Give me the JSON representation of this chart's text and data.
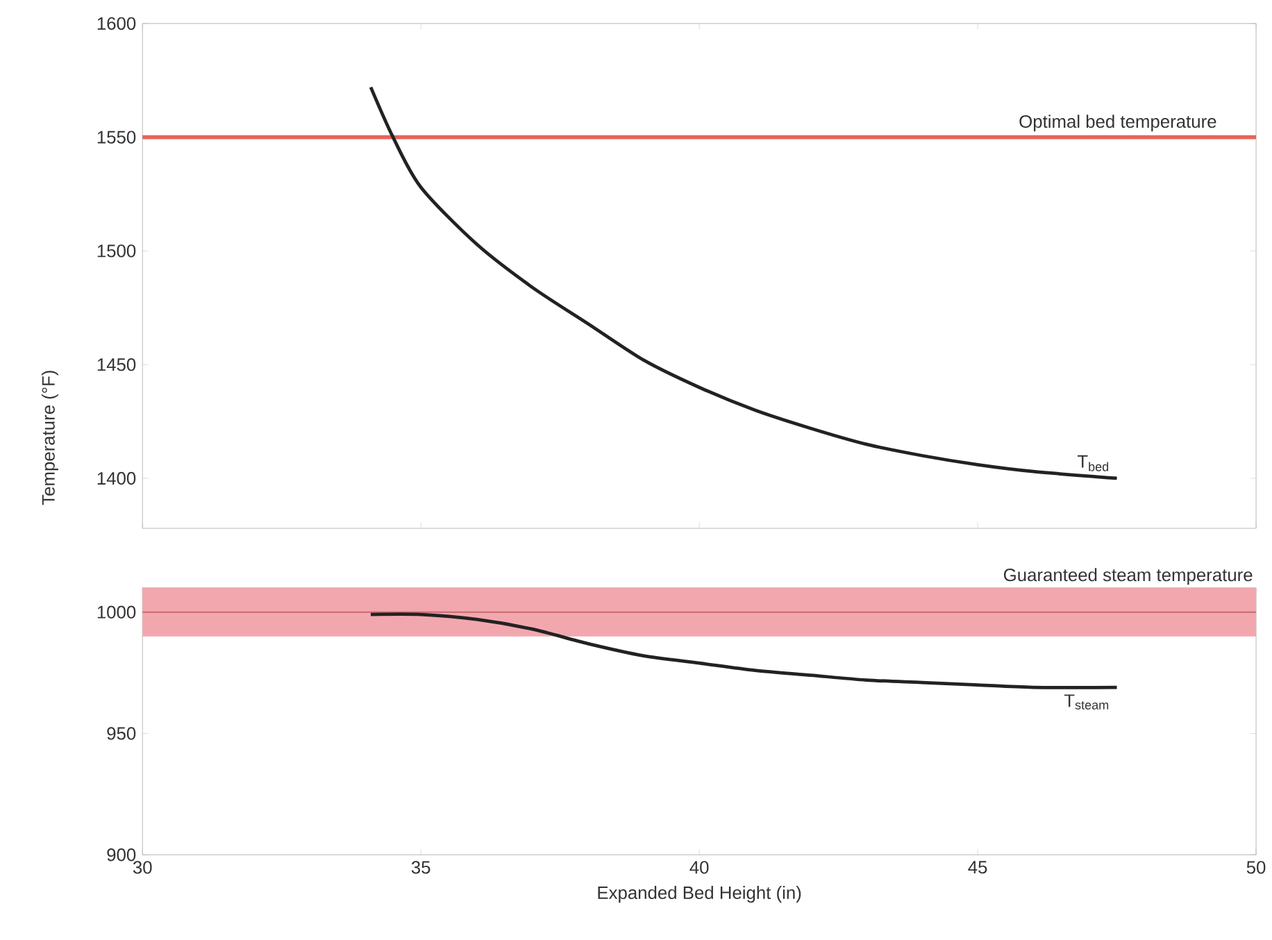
{
  "chart_data": [
    {
      "type": "line",
      "ylabel": "Temperature (°F)",
      "xlim": [
        30,
        50
      ],
      "ylim": [
        1378,
        1600
      ],
      "xticks": [
        30,
        35,
        40,
        45,
        50
      ],
      "yticks": [
        1400,
        1450,
        1500,
        1550,
        1600
      ],
      "tick_labels": "y",
      "grid": false,
      "marker": "none",
      "series": [
        {
          "name": "T$_{bed}$",
          "color": "#222222",
          "x": [
            34.1,
            34.5,
            35,
            36,
            37,
            38,
            39,
            40,
            41,
            42,
            43,
            44,
            45,
            46,
            47.5
          ],
          "values": [
            1572,
            1550,
            1528,
            1503,
            1484,
            1468,
            1452,
            1440,
            1430,
            1422,
            1415,
            1410,
            1406,
            1403,
            1400
          ]
        }
      ],
      "ref_lines": [
        {
          "axis": "y",
          "value": 1550,
          "label": "Optimal bed temperature",
          "color": "#e8645a"
        }
      ]
    },
    {
      "type": "line",
      "xlabel": "Expanded Bed Height (in)",
      "xlim": [
        30,
        50
      ],
      "ylim": [
        900,
        1010
      ],
      "xticks": [
        30,
        35,
        40,
        45,
        50
      ],
      "yticks": [
        900,
        950,
        1000
      ],
      "grid": false,
      "marker": "none",
      "series": [
        {
          "name": "T$_{steam}$",
          "color": "#222222",
          "x": [
            34.1,
            35,
            36,
            37,
            38,
            39,
            40,
            41,
            42,
            43,
            44,
            45,
            46,
            47.5
          ],
          "values": [
            999,
            999,
            997,
            993,
            987,
            982,
            979,
            976,
            974,
            972,
            971,
            970,
            969,
            969
          ]
        }
      ],
      "ref_lines": [
        {
          "axis": "y",
          "value": 1000,
          "color": "#c86a70"
        }
      ],
      "bands": [
        {
          "axis": "y",
          "from": 990,
          "to": 1010,
          "label": "Guaranteed steam temperature",
          "color": "#f2a7ae"
        }
      ]
    }
  ]
}
